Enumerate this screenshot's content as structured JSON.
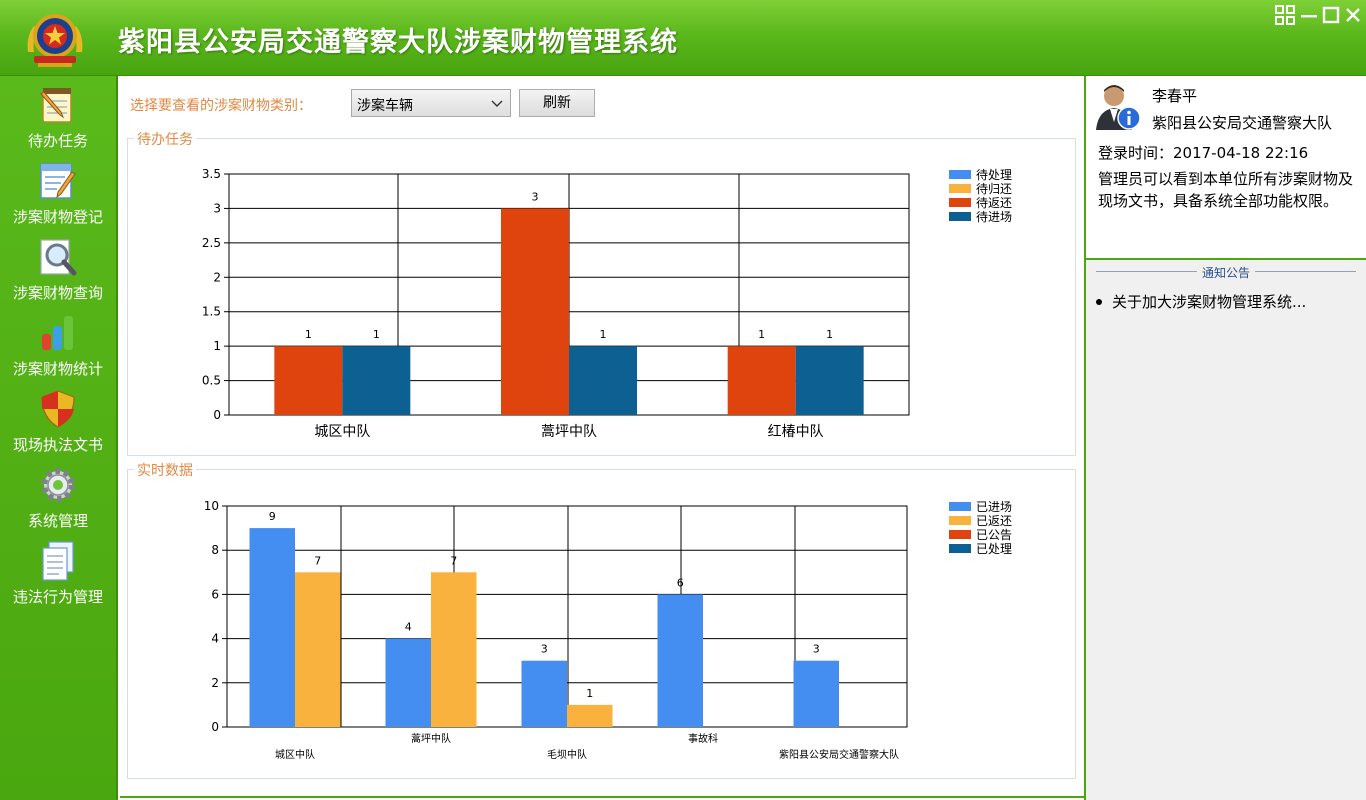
{
  "app": {
    "title": "紫阳县公安局交通警察大队涉案财物管理系统"
  },
  "window_controls": {
    "icons": [
      "grid-icon",
      "minimize-icon",
      "maximize-icon",
      "close-icon"
    ]
  },
  "sidebar": {
    "items": [
      {
        "label": "待办任务",
        "icon": "notepad-pencil-icon"
      },
      {
        "label": "涉案财物登记",
        "icon": "form-edit-icon"
      },
      {
        "label": "涉案财物查询",
        "icon": "magnifier-icon"
      },
      {
        "label": "涉案财物统计",
        "icon": "bar-chart-icon"
      },
      {
        "label": "现场执法文书",
        "icon": "shield-icon"
      },
      {
        "label": "系统管理",
        "icon": "gear-icon"
      },
      {
        "label": "违法行为管理",
        "icon": "documents-icon"
      }
    ]
  },
  "filter": {
    "label": "选择要查看的涉案财物类别：",
    "selected": "涉案车辆",
    "refresh_label": "刷新"
  },
  "pending_group": {
    "title": "待办任务"
  },
  "realtime_group": {
    "title": "实时数据"
  },
  "colors": {
    "blue": "#448ef2",
    "orange": "#f8b23d",
    "red": "#e0440e",
    "teal": "#0d6092",
    "green": "#4aa70f"
  },
  "chart_data": [
    {
      "type": "bar",
      "title": "待办任务",
      "categories": [
        "城区中队",
        "蒿坪中队",
        "红椿中队"
      ],
      "series": [
        {
          "name": "待处理",
          "color": "#448ef2",
          "values": [
            0,
            0,
            0
          ]
        },
        {
          "name": "待归还",
          "color": "#f8b23d",
          "values": [
            0,
            0,
            0
          ]
        },
        {
          "name": "待返还",
          "color": "#e0440e",
          "values": [
            1,
            3,
            1
          ]
        },
        {
          "name": "待进场",
          "color": "#0d6092",
          "values": [
            1,
            1,
            1
          ]
        }
      ],
      "ylim": [
        0,
        3.5
      ],
      "yticks": [
        "0",
        "0.5",
        "1",
        "1.5",
        "2",
        "2.5",
        "3",
        "3.5"
      ],
      "grid": true,
      "legend": "top-right"
    },
    {
      "type": "bar",
      "title": "实时数据",
      "categories": [
        "城区中队",
        "蒿坪中队",
        "毛坝中队",
        "事故科",
        "紫阳县公安局交通警察大队"
      ],
      "series": [
        {
          "name": "已进场",
          "color": "#448ef2",
          "values": [
            9,
            4,
            3,
            6,
            3
          ]
        },
        {
          "name": "已返还",
          "color": "#f8b23d",
          "values": [
            7,
            7,
            1,
            0,
            0
          ]
        },
        {
          "name": "已公告",
          "color": "#e0440e",
          "values": [
            0,
            0,
            0,
            0,
            0
          ]
        },
        {
          "name": "已处理",
          "color": "#0d6092",
          "values": [
            0,
            0,
            0,
            0,
            0
          ]
        }
      ],
      "ylim": [
        0,
        10
      ],
      "yticks": [
        "0",
        "2",
        "4",
        "6",
        "8",
        "10"
      ],
      "grid": true,
      "legend": "top-right"
    }
  ],
  "user": {
    "name": "李春平",
    "unit": "紫阳县公安局交通警察大队",
    "login_time": "登录时间：2017-04-18 22:16",
    "description": "管理员可以看到本单位所有涉案财物及现场文书，具备系统全部功能权限。"
  },
  "notice": {
    "title": "通知公告",
    "items": [
      "关于加大涉案财物管理系统..."
    ]
  }
}
